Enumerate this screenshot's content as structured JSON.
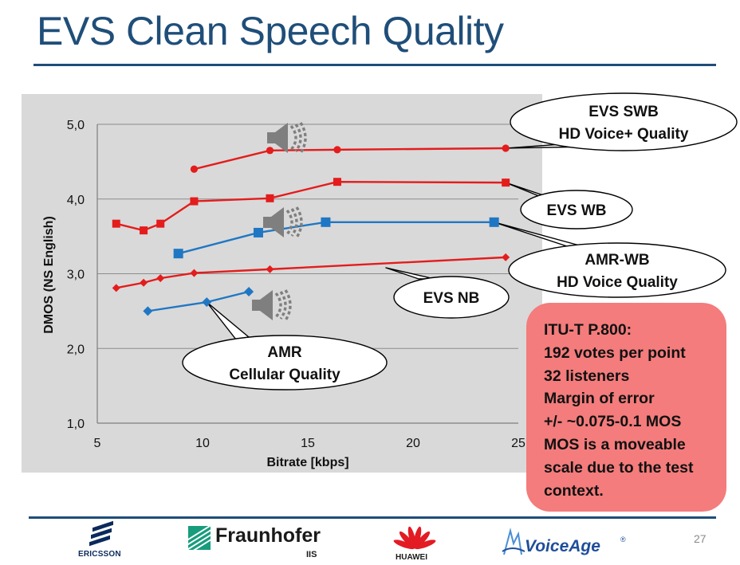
{
  "slide": {
    "title": "EVS Clean Speech Quality",
    "page_number": "27"
  },
  "chart_data": {
    "type": "line",
    "xlabel": "Bitrate [kbps]",
    "ylabel": "DMOS (NS English)",
    "xlim": [
      5,
      25
    ],
    "ylim": [
      1.0,
      5.0
    ],
    "x_ticks": [
      "5",
      "10",
      "15",
      "20",
      "25"
    ],
    "y_ticks": [
      "1,0",
      "2,0",
      "3,0",
      "4,0",
      "5,0"
    ],
    "grid": "horizontal",
    "series": [
      {
        "key": "evs_swb",
        "color": "#e41c1c",
        "marker": "circle",
        "x": [
          9.6,
          13.2,
          16.4,
          24.4
        ],
        "y": [
          4.4,
          4.65,
          4.66,
          4.68
        ]
      },
      {
        "key": "evs_wb",
        "color": "#e41c1c",
        "marker": "square",
        "x": [
          5.9,
          7.2,
          8.0,
          9.6,
          13.2,
          16.4,
          24.4
        ],
        "y": [
          3.67,
          3.58,
          3.67,
          3.97,
          4.01,
          4.23,
          4.22
        ]
      },
      {
        "key": "amr_wb",
        "color": "#1f77c4",
        "marker": "square",
        "x": [
          8.85,
          12.65,
          15.85,
          23.85
        ],
        "y": [
          3.27,
          3.55,
          3.69,
          3.69
        ]
      },
      {
        "key": "evs_nb",
        "color": "#e41c1c",
        "marker": "diamond",
        "x": [
          5.9,
          7.2,
          8.0,
          9.6,
          13.2,
          24.4
        ],
        "y": [
          2.81,
          2.88,
          2.94,
          3.01,
          3.06,
          3.22
        ]
      },
      {
        "key": "amr",
        "color": "#1f77c4",
        "marker": "diamond",
        "x": [
          7.4,
          10.2,
          12.2
        ],
        "y": [
          2.5,
          2.62,
          2.76
        ]
      }
    ],
    "annotations": [
      {
        "series": "evs_swb",
        "lines": [
          "EVS SWB",
          "HD Voice+ Quality"
        ]
      },
      {
        "series": "evs_wb",
        "lines": [
          "EVS WB"
        ]
      },
      {
        "series": "amr_wb",
        "lines": [
          "AMR-WB",
          "HD Voice Quality"
        ]
      },
      {
        "series": "evs_nb",
        "lines": [
          "EVS NB"
        ]
      },
      {
        "series": "amr",
        "lines": [
          "AMR",
          "Cellular Quality"
        ]
      }
    ]
  },
  "note": {
    "lines": [
      "ITU-T P.800:",
      "192 votes per point",
      "32 listeners",
      "Margin of error",
      "+/- ~0.075-0.1 MOS",
      "MOS is a moveable",
      "scale due to the test",
      "context."
    ]
  },
  "logos": {
    "ericsson": "ERICSSON",
    "fraunhofer": "Fraunhofer",
    "fraunhofer_sub": "IIS",
    "huawei": "HUAWEI",
    "voiceage": "VoiceAge",
    "voiceage_mark": "®"
  }
}
